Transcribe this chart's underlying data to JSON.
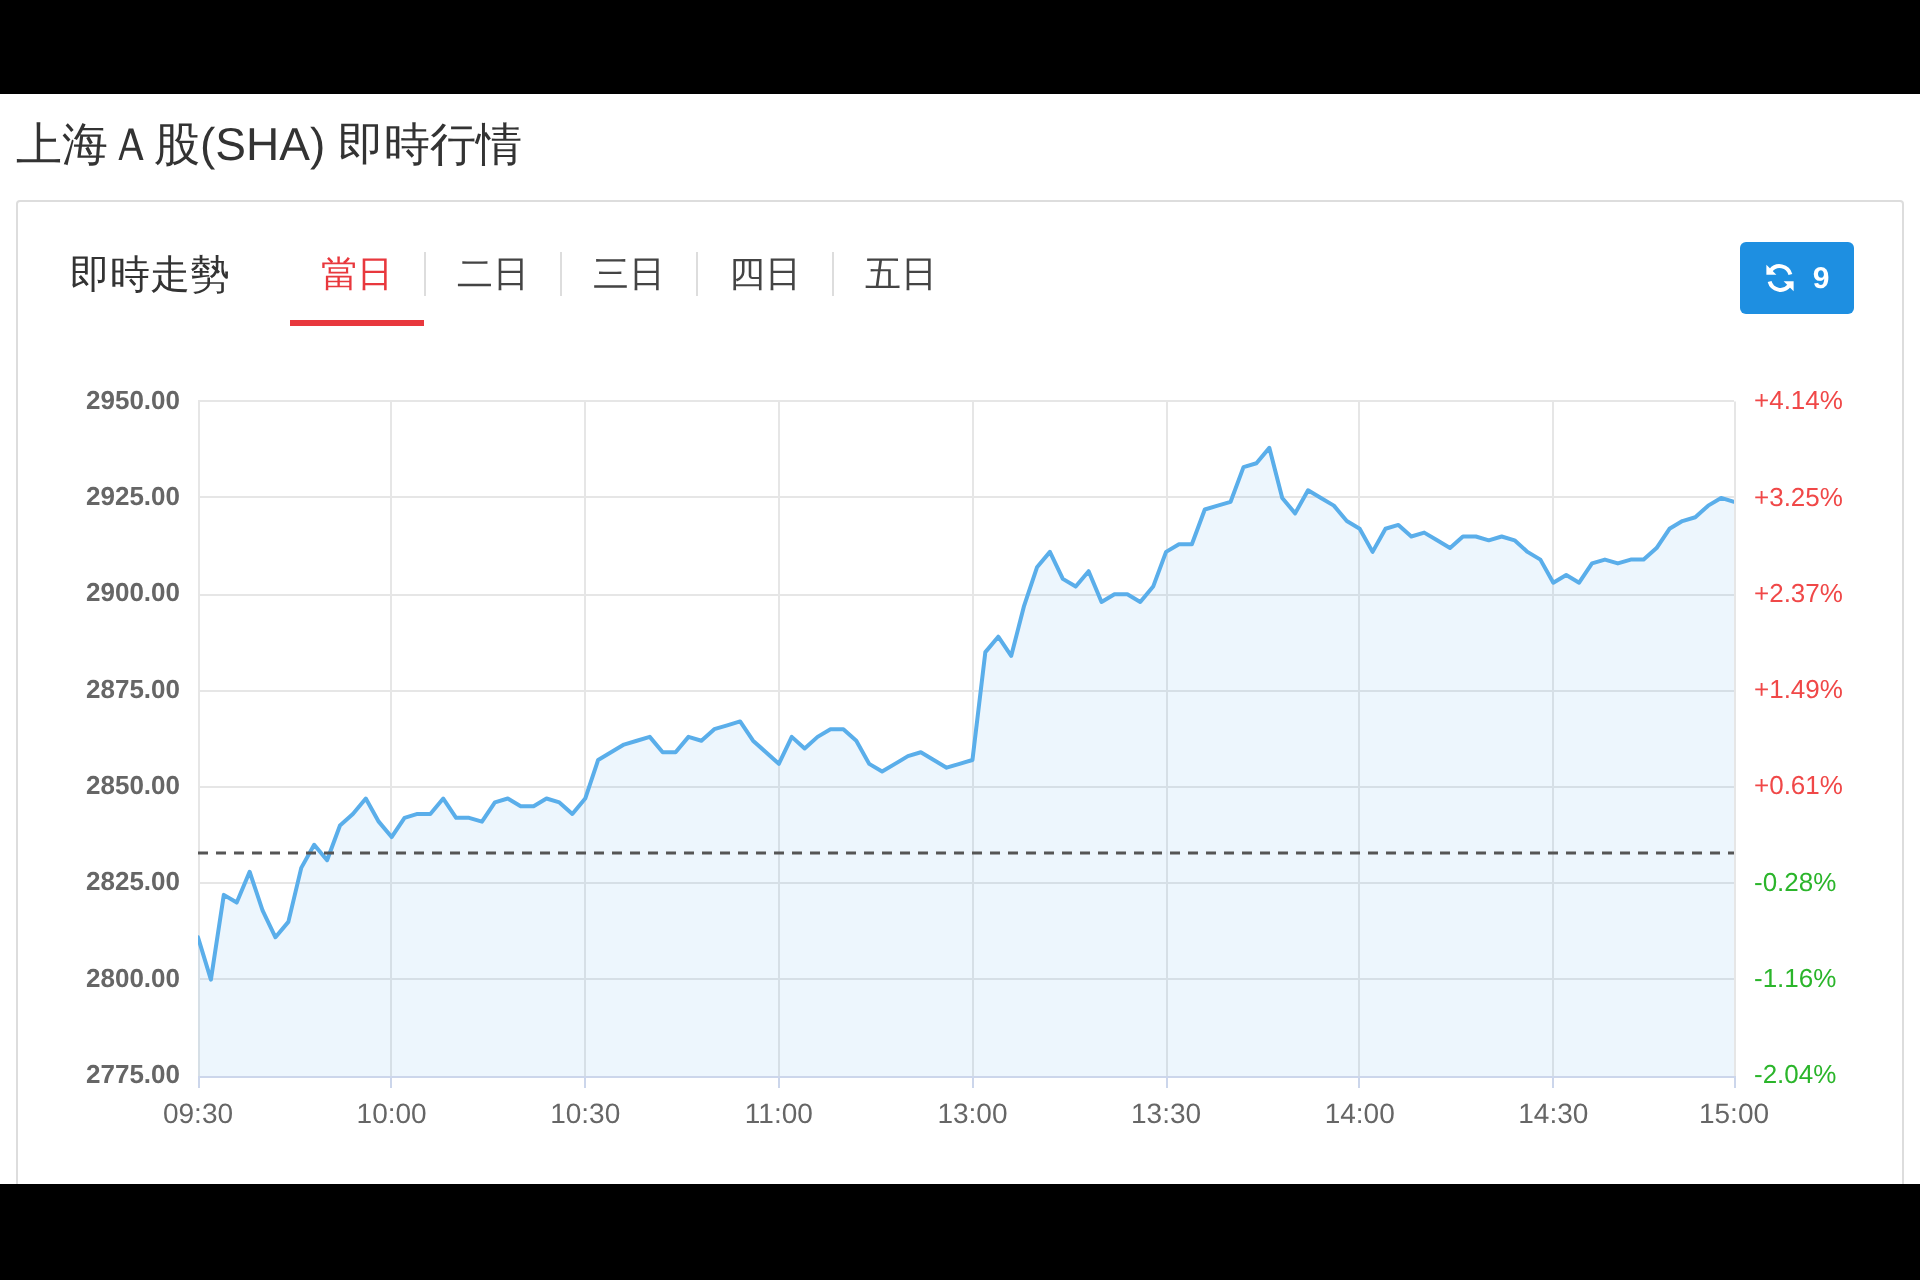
{
  "chart_data": {
    "type": "area",
    "title": "上海Ａ股(SHA) 即時行情",
    "subtitle": "即時走勢",
    "annotations": [
      "當日",
      "二日",
      "三日",
      "四日",
      "五日",
      "9"
    ],
    "categories": [
      "09:30",
      null,
      null,
      null,
      null,
      null,
      null,
      null,
      null,
      null,
      null,
      null,
      null,
      null,
      null,
      "10:00",
      null,
      null,
      null,
      null,
      null,
      null,
      null,
      null,
      null,
      null,
      null,
      null,
      null,
      null,
      "10:30",
      null,
      null,
      null,
      null,
      null,
      null,
      null,
      null,
      null,
      null,
      null,
      null,
      null,
      null,
      "11:00",
      null,
      null,
      null,
      null,
      null,
      null,
      null,
      null,
      null,
      null,
      null,
      null,
      null,
      null,
      "13:00",
      null,
      null,
      null,
      null,
      null,
      null,
      null,
      null,
      null,
      null,
      null,
      null,
      null,
      null,
      "13:30",
      null,
      null,
      null,
      null,
      null,
      null,
      null,
      null,
      null,
      null,
      null,
      null,
      null,
      null,
      "14:00",
      null,
      null,
      null,
      null,
      null,
      null,
      null,
      null,
      null,
      null,
      null,
      null,
      null,
      null,
      "14:30",
      null,
      null,
      null,
      null,
      null,
      null,
      null,
      null,
      null,
      null,
      null,
      null,
      null,
      "15:00"
    ],
    "values": [
      2811,
      2800,
      2822,
      2820,
      2828,
      2818,
      2811,
      2815,
      2829,
      2835,
      2831,
      2840,
      2843,
      2847,
      2841,
      2837,
      2842,
      2843,
      2843,
      2847,
      2842,
      2842,
      2841,
      2846,
      2847,
      2845,
      2845,
      2847,
      2846,
      2843,
      2847,
      2857,
      2859,
      2861,
      2862,
      2863,
      2859,
      2859,
      2863,
      2862,
      2865,
      2866,
      2867,
      2862,
      2859,
      2856,
      2863,
      2860,
      2863,
      2865,
      2865,
      2862,
      2856,
      2854,
      2856,
      2858,
      2859,
      2857,
      2855,
      2856,
      2857,
      2885,
      2889,
      2884,
      2897,
      2907,
      2911,
      2904,
      2902,
      2906,
      2898,
      2900,
      2900,
      2898,
      2902,
      2911,
      2913,
      2913,
      2922,
      2923,
      2924,
      2933,
      2934,
      2938,
      2925,
      2921,
      2927,
      2925,
      2923,
      2919,
      2917,
      2911,
      2917,
      2918,
      2915,
      2916,
      2914,
      2912,
      2915,
      2915,
      2914,
      2915,
      2914,
      2911,
      2909,
      2903,
      2905,
      2903,
      2908,
      2909,
      2908,
      2909,
      2909,
      2912,
      2917,
      2919,
      2920,
      2923,
      2925,
      2924
    ],
    "color": "#5aaeea",
    "ylim": [
      2775,
      2950
    ],
    "yticks": [
      {
        "value": 2775,
        "label": "2775.00"
      },
      {
        "value": 2800,
        "label": "2800.00"
      },
      {
        "value": 2825,
        "label": "2825.00"
      },
      {
        "value": 2850,
        "label": "2850.00"
      },
      {
        "value": 2875,
        "label": "2875.00"
      },
      {
        "value": 2900,
        "label": "2900.00"
      },
      {
        "value": 2925,
        "label": "2925.00"
      },
      {
        "value": 2950,
        "label": "2950.00"
      }
    ],
    "y2lim": [
      -2.04,
      4.14
    ],
    "y2ticks": [
      {
        "value": -2.04,
        "label": "-2.04%"
      },
      {
        "value": -1.16,
        "label": "-1.16%"
      },
      {
        "value": -0.28,
        "label": "-0.28%"
      },
      {
        "value": 0.61,
        "label": "+0.61%"
      },
      {
        "value": 1.49,
        "label": "+1.49%"
      },
      {
        "value": 2.37,
        "label": "+2.37%"
      },
      {
        "value": 3.25,
        "label": "+3.25%"
      },
      {
        "value": 4.14,
        "label": "+4.14%"
      }
    ],
    "ref_lines": [
      {
        "axis": "y",
        "value": 2833,
        "color": "#555555",
        "line_style": "dashed"
      }
    ],
    "grid": true
  }
}
